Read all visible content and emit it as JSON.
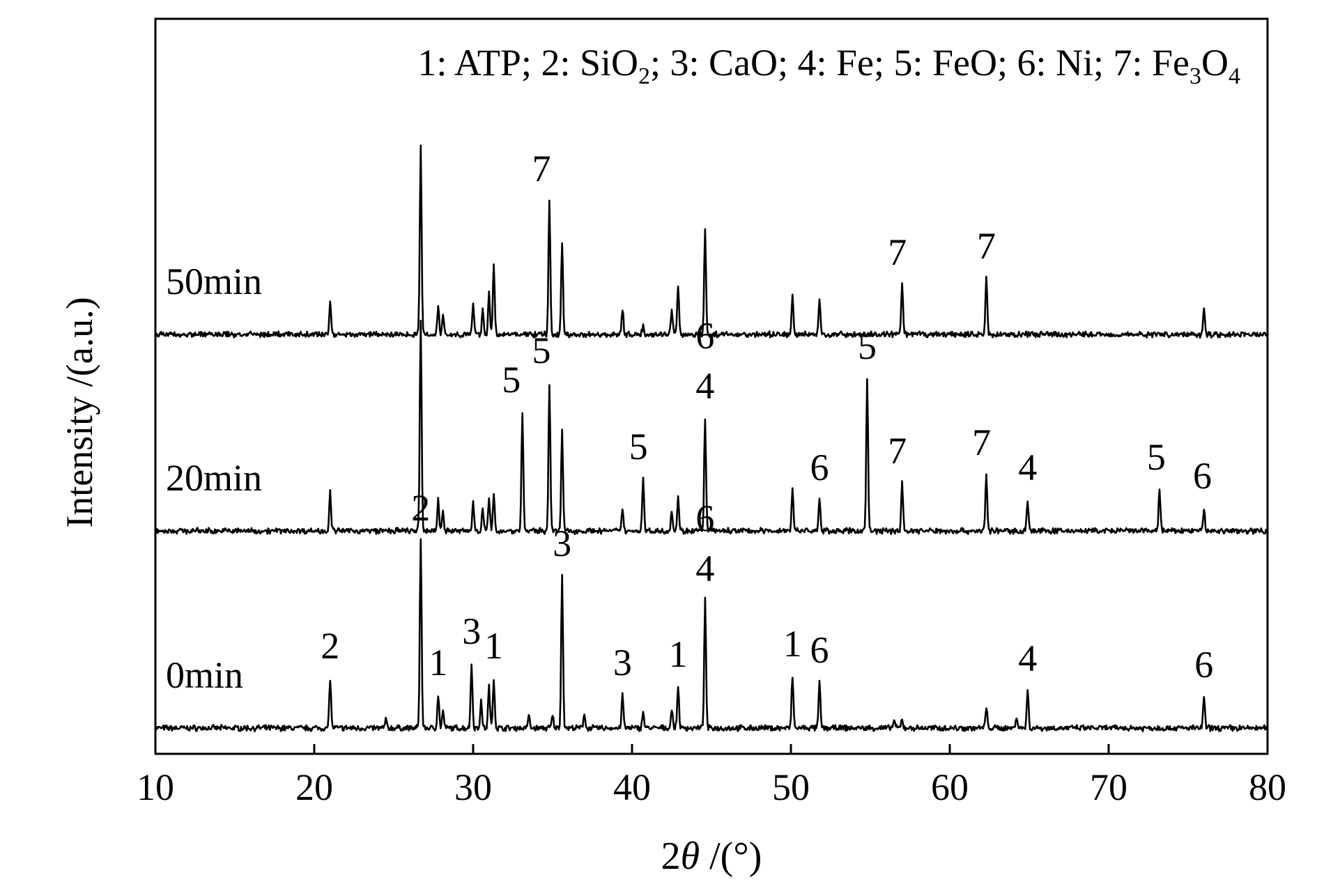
{
  "chart_data": {
    "type": "line",
    "title": "",
    "xlabel_prefix": "2",
    "xlabel_theta": "θ",
    "xlabel_suffix": " /(°)",
    "ylabel": "Intensity /(a.u.)",
    "xlim": [
      10,
      80
    ],
    "xticks": [
      10,
      20,
      30,
      40,
      50,
      60,
      70,
      80
    ],
    "grid": false,
    "legend_placement": "top-right",
    "legend_text": [
      {
        "t": "1: ATP; 2: SiO"
      },
      {
        "t": "2",
        "sub": true
      },
      {
        "t": "; 3: CaO; 4: Fe; 5: FeO; 6: Ni; 7: Fe"
      },
      {
        "t": "3",
        "sub": true
      },
      {
        "t": "O"
      },
      {
        "t": "4",
        "sub": true
      }
    ],
    "series": [
      {
        "name": "0min",
        "peaks": [
          {
            "x": 21.0,
            "h": 0.24
          },
          {
            "x": 24.5,
            "h": 0.04
          },
          {
            "x": 26.7,
            "h": 0.9
          },
          {
            "x": 27.8,
            "h": 0.16
          },
          {
            "x": 28.1,
            "h": 0.08
          },
          {
            "x": 29.9,
            "h": 0.31
          },
          {
            "x": 30.5,
            "h": 0.13
          },
          {
            "x": 31.0,
            "h": 0.2
          },
          {
            "x": 31.3,
            "h": 0.24
          },
          {
            "x": 33.5,
            "h": 0.06
          },
          {
            "x": 35.0,
            "h": 0.06
          },
          {
            "x": 35.6,
            "h": 0.73
          },
          {
            "x": 37.0,
            "h": 0.07
          },
          {
            "x": 39.4,
            "h": 0.16
          },
          {
            "x": 40.7,
            "h": 0.08
          },
          {
            "x": 42.5,
            "h": 0.09
          },
          {
            "x": 42.9,
            "h": 0.2
          },
          {
            "x": 44.6,
            "h": 0.61
          },
          {
            "x": 50.1,
            "h": 0.25
          },
          {
            "x": 51.8,
            "h": 0.22
          },
          {
            "x": 56.5,
            "h": 0.04
          },
          {
            "x": 57.0,
            "h": 0.04
          },
          {
            "x": 62.3,
            "h": 0.1
          },
          {
            "x": 64.2,
            "h": 0.06
          },
          {
            "x": 64.9,
            "h": 0.18
          },
          {
            "x": 76.0,
            "h": 0.15
          }
        ],
        "labels": [
          {
            "x": 21.0,
            "text": "2",
            "h": 0.24
          },
          {
            "x": 26.7,
            "text": "2",
            "h": 0.9
          },
          {
            "x": 27.8,
            "text": "1",
            "h": 0.16
          },
          {
            "x": 29.9,
            "text": "3",
            "h": 0.31
          },
          {
            "x": 31.3,
            "text": "1",
            "h": 0.24
          },
          {
            "x": 35.6,
            "text": "3",
            "h": 0.73
          },
          {
            "x": 39.4,
            "text": "3",
            "h": 0.16
          },
          {
            "x": 42.9,
            "text": "1",
            "h": 0.2
          },
          {
            "x": 44.6,
            "text": "4",
            "h": 0.61
          },
          {
            "x": 44.6,
            "text": "6",
            "h": 0.61,
            "stack": 1
          },
          {
            "x": 50.1,
            "text": "1",
            "h": 0.25
          },
          {
            "x": 51.8,
            "text": "6",
            "h": 0.22
          },
          {
            "x": 64.9,
            "text": "4",
            "h": 0.18
          },
          {
            "x": 76.0,
            "text": "6",
            "h": 0.15
          }
        ]
      },
      {
        "name": "20min",
        "peaks": [
          {
            "x": 21.0,
            "h": 0.19
          },
          {
            "x": 26.7,
            "h": 1.0
          },
          {
            "x": 27.8,
            "h": 0.15
          },
          {
            "x": 28.1,
            "h": 0.1
          },
          {
            "x": 30.0,
            "h": 0.14
          },
          {
            "x": 30.6,
            "h": 0.11
          },
          {
            "x": 31.0,
            "h": 0.15
          },
          {
            "x": 31.3,
            "h": 0.17
          },
          {
            "x": 33.1,
            "h": 0.57
          },
          {
            "x": 34.8,
            "h": 0.71
          },
          {
            "x": 35.6,
            "h": 0.48
          },
          {
            "x": 39.4,
            "h": 0.11
          },
          {
            "x": 40.7,
            "h": 0.25
          },
          {
            "x": 42.5,
            "h": 0.1
          },
          {
            "x": 42.9,
            "h": 0.16
          },
          {
            "x": 44.6,
            "h": 0.54
          },
          {
            "x": 50.1,
            "h": 0.21
          },
          {
            "x": 51.8,
            "h": 0.15
          },
          {
            "x": 54.8,
            "h": 0.73
          },
          {
            "x": 57.0,
            "h": 0.23
          },
          {
            "x": 62.3,
            "h": 0.27
          },
          {
            "x": 64.9,
            "h": 0.15
          },
          {
            "x": 73.2,
            "h": 0.2
          },
          {
            "x": 76.0,
            "h": 0.11
          }
        ],
        "labels": [
          {
            "x": 32.4,
            "text": "5",
            "h": 0.57
          },
          {
            "x": 34.3,
            "text": "5",
            "h": 0.71
          },
          {
            "x": 40.4,
            "text": "5",
            "h": 0.25
          },
          {
            "x": 44.6,
            "text": "4",
            "h": 0.54
          },
          {
            "x": 44.6,
            "text": "6",
            "h": 0.54,
            "stack": 1
          },
          {
            "x": 51.8,
            "text": "6",
            "h": 0.15
          },
          {
            "x": 54.8,
            "text": "5",
            "h": 0.73
          },
          {
            "x": 56.7,
            "text": "7",
            "h": 0.23
          },
          {
            "x": 62.0,
            "text": "7",
            "h": 0.27
          },
          {
            "x": 64.9,
            "text": "4",
            "h": 0.15
          },
          {
            "x": 73.0,
            "text": "5",
            "h": 0.2
          },
          {
            "x": 75.9,
            "text": "6",
            "h": 0.11
          }
        ]
      },
      {
        "name": "50min",
        "peaks": [
          {
            "x": 21.0,
            "h": 0.16
          },
          {
            "x": 26.7,
            "h": 0.9
          },
          {
            "x": 27.8,
            "h": 0.14
          },
          {
            "x": 28.1,
            "h": 0.1
          },
          {
            "x": 30.0,
            "h": 0.14
          },
          {
            "x": 30.6,
            "h": 0.12
          },
          {
            "x": 31.0,
            "h": 0.2
          },
          {
            "x": 31.3,
            "h": 0.33
          },
          {
            "x": 34.8,
            "h": 0.64
          },
          {
            "x": 35.6,
            "h": 0.44
          },
          {
            "x": 39.4,
            "h": 0.12
          },
          {
            "x": 40.7,
            "h": 0.04
          },
          {
            "x": 42.5,
            "h": 0.13
          },
          {
            "x": 42.9,
            "h": 0.22
          },
          {
            "x": 44.6,
            "h": 0.5
          },
          {
            "x": 50.1,
            "h": 0.18
          },
          {
            "x": 51.8,
            "h": 0.16
          },
          {
            "x": 57.0,
            "h": 0.24
          },
          {
            "x": 62.3,
            "h": 0.27
          },
          {
            "x": 76.0,
            "h": 0.13
          }
        ],
        "labels": [
          {
            "x": 34.3,
            "text": "7",
            "h": 0.64
          },
          {
            "x": 56.7,
            "text": "7",
            "h": 0.24
          },
          {
            "x": 62.3,
            "text": "7",
            "h": 0.27
          }
        ]
      }
    ]
  }
}
